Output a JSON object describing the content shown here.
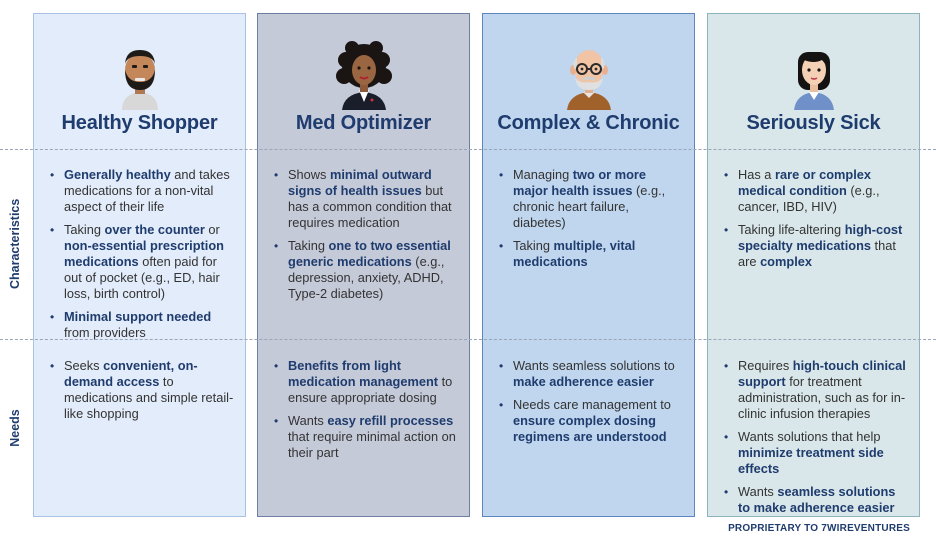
{
  "row_labels": {
    "characteristics": "Characteristics",
    "needs": "Needs"
  },
  "footer": "PROPRIETARY TO 7WIREVENTURES",
  "columns": [
    {
      "title": "Healthy Shopper",
      "avatar": "bearded-man-avatar",
      "characteristics": [
        [
          {
            "b": true,
            "t": "Generally healthy"
          },
          {
            "b": false,
            "t": " and takes medications for a non-vital aspect of their life"
          }
        ],
        [
          {
            "b": false,
            "t": "Taking "
          },
          {
            "b": true,
            "t": "over the counter"
          },
          {
            "b": false,
            "t": " or "
          },
          {
            "b": true,
            "t": "non-essential prescription medications"
          },
          {
            "b": false,
            "t": " often paid for out of pocket (e.g., ED, hair loss, birth control)"
          }
        ],
        [
          {
            "b": true,
            "t": "Minimal support needed"
          },
          {
            "b": false,
            "t": " from providers"
          }
        ]
      ],
      "needs": [
        [
          {
            "b": false,
            "t": "Seeks "
          },
          {
            "b": true,
            "t": "convenient, on-demand access"
          },
          {
            "b": false,
            "t": " to medications and simple retail-like shopping"
          }
        ]
      ]
    },
    {
      "title": "Med Optimizer",
      "avatar": "curly-hair-woman-avatar",
      "characteristics": [
        [
          {
            "b": false,
            "t": "Shows "
          },
          {
            "b": true,
            "t": "minimal outward signs of health issues"
          },
          {
            "b": false,
            "t": " but has a common condition that requires medication"
          }
        ],
        [
          {
            "b": false,
            "t": "Taking "
          },
          {
            "b": true,
            "t": "one to two essential generic medications"
          },
          {
            "b": false,
            "t": " (e.g., depression, anxiety, ADHD, Type-2 diabetes)"
          }
        ]
      ],
      "needs": [
        [
          {
            "b": true,
            "t": "Benefits from light medication management"
          },
          {
            "b": false,
            "t": " to ensure appropriate dosing"
          }
        ],
        [
          {
            "b": false,
            "t": "Wants "
          },
          {
            "b": true,
            "t": "easy refill processes"
          },
          {
            "b": false,
            "t": " that require minimal action on their part"
          }
        ]
      ]
    },
    {
      "title": "Complex & Chronic",
      "avatar": "elderly-man-avatar",
      "characteristics": [
        [
          {
            "b": false,
            "t": "Managing "
          },
          {
            "b": true,
            "t": "two or more major health issues"
          },
          {
            "b": false,
            "t": " (e.g., chronic heart failure, diabetes)"
          }
        ],
        [
          {
            "b": false,
            "t": "Taking "
          },
          {
            "b": true,
            "t": "multiple, vital medications"
          }
        ]
      ],
      "needs": [
        [
          {
            "b": false,
            "t": "Wants seamless solutions to "
          },
          {
            "b": true,
            "t": "make adherence easier"
          }
        ],
        [
          {
            "b": false,
            "t": "Needs care management to "
          },
          {
            "b": true,
            "t": "ensure complex dosing regimens are understood"
          }
        ]
      ]
    },
    {
      "title": "Seriously Sick",
      "avatar": "young-woman-avatar",
      "characteristics": [
        [
          {
            "b": false,
            "t": "Has a "
          },
          {
            "b": true,
            "t": "rare or complex medical condition"
          },
          {
            "b": false,
            "t": " (e.g., cancer, IBD, HIV)"
          }
        ],
        [
          {
            "b": false,
            "t": "Taking life-altering "
          },
          {
            "b": true,
            "t": "high-cost specialty medications"
          },
          {
            "b": false,
            "t": " that are "
          },
          {
            "b": true,
            "t": "complex"
          }
        ]
      ],
      "needs": [
        [
          {
            "b": false,
            "t": "Requires "
          },
          {
            "b": true,
            "t": "high-touch clinical support"
          },
          {
            "b": false,
            "t": " for treatment administration, such as for in-clinic infusion therapies"
          }
        ],
        [
          {
            "b": false,
            "t": "Wants solutions that help "
          },
          {
            "b": true,
            "t": "minimize treatment side effects"
          }
        ],
        [
          {
            "b": false,
            "t": "Wants "
          },
          {
            "b": true,
            "t": "seamless solutions to make adherence easier"
          }
        ]
      ]
    }
  ]
}
